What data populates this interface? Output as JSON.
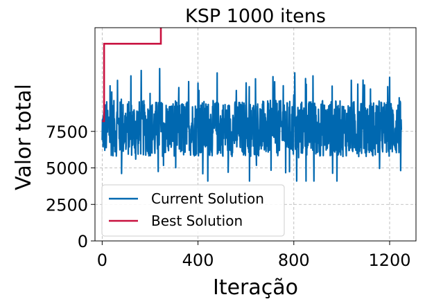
{
  "chart_data": {
    "type": "line",
    "title": "KSP 1000 itens",
    "xlabel": "Iteração",
    "ylabel": "Valor total",
    "xlim": [
      -30,
      1310
    ],
    "ylim": [
      0,
      14600
    ],
    "xticks": [
      0,
      400,
      800,
      1200
    ],
    "yticks": [
      0,
      2500,
      5000,
      7500
    ],
    "grid": true,
    "legend_position": "lower-left",
    "n_iterations": 1250,
    "series": [
      {
        "name": "Current Solution",
        "color": "#0068b0",
        "range": [
          4100,
          11800
        ],
        "typical_range": [
          6000,
          9500
        ],
        "mean": 7700,
        "x": [
          0,
          20,
          40,
          60,
          80,
          100,
          120,
          140,
          160,
          180,
          200,
          220,
          240,
          260,
          280,
          300,
          320,
          340,
          360,
          380,
          400,
          420,
          440,
          460,
          480,
          500,
          520,
          540,
          560,
          580,
          600,
          620,
          640,
          660,
          680,
          700,
          720,
          740,
          760,
          780,
          800,
          820,
          840,
          860,
          880,
          900,
          920,
          940,
          960,
          980,
          1000,
          1020,
          1040,
          1060,
          1080,
          1100,
          1120,
          1140,
          1160,
          1180,
          1200,
          1220,
          1240,
          1249
        ],
        "y": [
          6900,
          8300,
          10200,
          6300,
          9700,
          6500,
          11300,
          5600,
          8800,
          7300,
          10100,
          6000,
          11800,
          6700,
          9100,
          7400,
          10500,
          5900,
          8600,
          7000,
          10800,
          4600,
          9200,
          6600,
          11500,
          7200,
          8400,
          6100,
          10300,
          7600,
          9000,
          5800,
          11100,
          6800,
          8700,
          7100,
          10900,
          6200,
          9300,
          7500,
          10000,
          5700,
          8900,
          6900,
          11300,
          7300,
          9600,
          6400,
          10600,
          4100,
          8200,
          7000,
          11000,
          6300,
          9400,
          7700,
          10400,
          5900,
          8500,
          6700,
          11200,
          7200,
          9800,
          7600
        ]
      },
      {
        "name": "Best Solution",
        "color": "#c8103e",
        "steps": [
          {
            "x": 0,
            "y": 8200
          },
          {
            "x": 8,
            "y": 13500
          },
          {
            "x": 245,
            "y": 14660
          },
          {
            "x": 1249,
            "y": 14660
          }
        ]
      }
    ]
  }
}
